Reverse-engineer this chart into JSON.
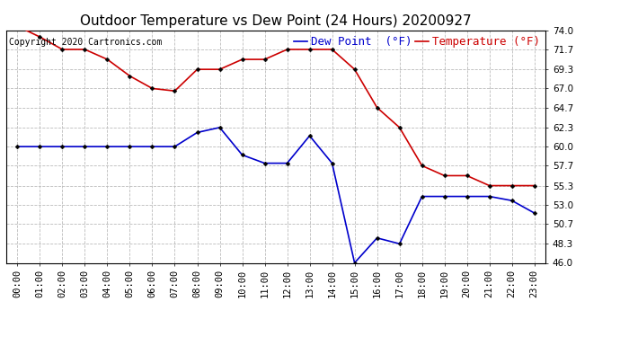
{
  "title": "Outdoor Temperature vs Dew Point (24 Hours) 20200927",
  "copyright": "Copyright 2020 Cartronics.com",
  "legend_dew": "Dew Point  (°F)",
  "legend_temp": "Temperature (°F)",
  "x_labels": [
    "00:00",
    "01:00",
    "02:00",
    "03:00",
    "04:00",
    "05:00",
    "06:00",
    "07:00",
    "08:00",
    "09:00",
    "10:00",
    "11:00",
    "12:00",
    "13:00",
    "14:00",
    "15:00",
    "16:00",
    "17:00",
    "18:00",
    "19:00",
    "20:00",
    "21:00",
    "22:00",
    "23:00"
  ],
  "temperature": [
    74.5,
    73.2,
    71.7,
    71.7,
    70.5,
    68.5,
    67.0,
    66.7,
    69.3,
    69.3,
    70.5,
    70.5,
    71.7,
    71.7,
    71.7,
    69.3,
    64.7,
    62.3,
    57.7,
    56.5,
    56.5,
    55.3,
    55.3,
    55.3
  ],
  "dewpoint": [
    60.0,
    60.0,
    60.0,
    60.0,
    60.0,
    60.0,
    60.0,
    60.0,
    61.7,
    62.3,
    59.0,
    58.0,
    58.0,
    61.3,
    58.0,
    46.0,
    49.0,
    48.3,
    54.0,
    54.0,
    54.0,
    54.0,
    53.5,
    52.0
  ],
  "temp_color": "#cc0000",
  "dew_color": "#0000cc",
  "ylim": [
    46.0,
    74.0
  ],
  "yticks": [
    46.0,
    48.3,
    50.7,
    53.0,
    55.3,
    57.7,
    60.0,
    62.3,
    64.7,
    67.0,
    69.3,
    71.7,
    74.0
  ],
  "background_color": "#ffffff",
  "grid_color": "#bbbbbb",
  "title_fontsize": 11,
  "legend_fontsize": 9,
  "axis_fontsize": 7.5,
  "copyright_fontsize": 7
}
